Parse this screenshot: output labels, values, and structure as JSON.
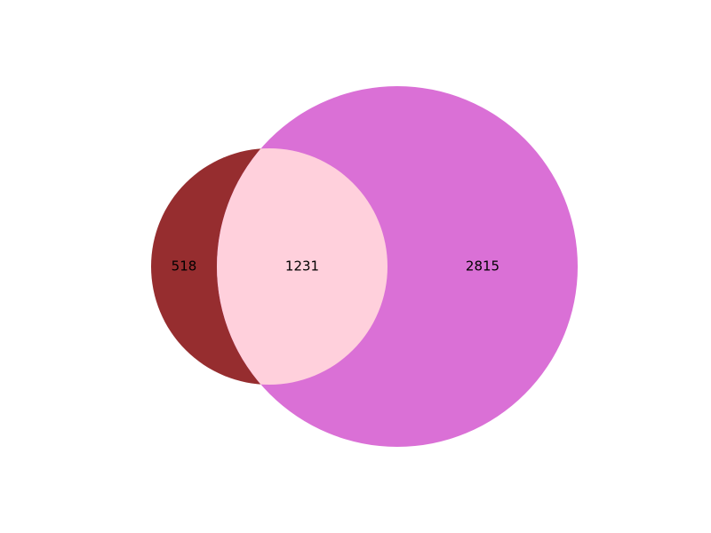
{
  "venn": {
    "type": "venn2",
    "sets": [
      {
        "color": "#962d2f"
      },
      {
        "color": "#da70d6"
      }
    ],
    "intersection_color": "#ffd0dc",
    "regions": {
      "only_a": "518",
      "both": "1231",
      "only_b": "2815"
    }
  }
}
